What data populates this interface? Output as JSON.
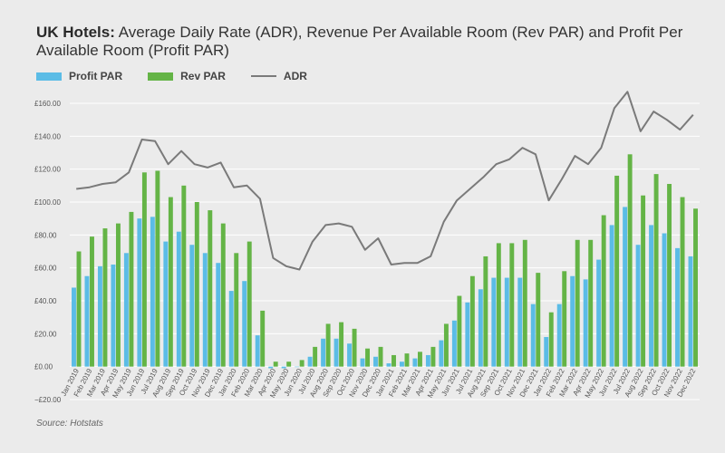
{
  "title_bold": "UK Hotels:",
  "title_rest": " Average Daily Rate (ADR), Revenue Per Available Room (Rev PAR) and Profit Per Available Room (Profit PAR)",
  "source": "Source: Hotstats",
  "colors": {
    "profit": "#5bbce6",
    "rev": "#64b446",
    "adr": "#7a7a7a",
    "grid": "#ffffff"
  },
  "legend": [
    {
      "label": "Profit PAR",
      "kind": "bar",
      "color": "#5bbce6"
    },
    {
      "label": "Rev PAR",
      "kind": "bar",
      "color": "#64b446"
    },
    {
      "label": "ADR",
      "kind": "line",
      "color": "#7a7a7a"
    }
  ],
  "chart_data": {
    "type": "bar",
    "title": "UK Hotels: Average Daily Rate (ADR), Revenue Per Available Room (Rev PAR) and Profit Per Available Room (Profit PAR)",
    "ylim": [
      -20,
      160
    ],
    "yticks": [
      -20,
      0,
      20,
      40,
      60,
      80,
      100,
      120,
      140,
      160
    ],
    "ytick_labels": [
      "−£20.00",
      "£0.00",
      "£20.00",
      "£40.00",
      "£60.00",
      "£80.00",
      "£100.00",
      "£120.00",
      "£140.00",
      "£160.00"
    ],
    "grid": true,
    "legend_position": "top-left",
    "categories": [
      "Jan 2019",
      "Feb 2019",
      "Mar 2019",
      "Apr 2019",
      "May 2019",
      "Jun 2019",
      "Jul 2019",
      "Aug 2019",
      "Sep 2019",
      "Oct 2019",
      "Nov 2019",
      "Dec 2019",
      "Jan 2020",
      "Feb 2020",
      "Mar 2020",
      "Apr 2020",
      "May 2020",
      "Jun 2020",
      "Jul 2020",
      "Aug 2020",
      "Sep 2020",
      "Oct 2020",
      "Nov 2020",
      "Dec 2020",
      "Jan 2021",
      "Feb 2021",
      "Mar 2021",
      "Apr 2021",
      "May 2021",
      "Jun 2021",
      "Jul 2021",
      "Aug 2021",
      "Sep 2021",
      "Oct 2021",
      "Nov 2021",
      "Dec 2021",
      "Jan 2022",
      "Feb 2022",
      "Mar 2022",
      "Apr 2022",
      "May 2022",
      "Jun 2022",
      "Jul 2022",
      "Aug 2022",
      "Sep 2022",
      "Oct 2022",
      "Nov 2022",
      "Dec 2022"
    ],
    "series": [
      {
        "name": "Profit PAR",
        "type": "bar",
        "values": [
          48,
          55,
          61,
          62,
          69,
          90,
          91,
          76,
          82,
          74,
          69,
          63,
          46,
          52,
          19,
          -1,
          -1,
          0,
          6,
          17,
          17,
          14,
          5,
          6,
          2,
          3,
          5,
          7,
          16,
          28,
          39,
          47,
          54,
          54,
          54,
          38,
          18,
          38,
          55,
          53,
          65,
          86,
          97,
          74,
          86,
          81,
          72,
          67
        ]
      },
      {
        "name": "Rev PAR",
        "type": "bar",
        "values": [
          70,
          79,
          84,
          87,
          94,
          118,
          119,
          103,
          110,
          100,
          95,
          87,
          69,
          76,
          34,
          3,
          3,
          4,
          12,
          26,
          27,
          23,
          11,
          12,
          7,
          8,
          9,
          12,
          26,
          43,
          55,
          67,
          75,
          75,
          77,
          57,
          33,
          58,
          77,
          77,
          92,
          116,
          129,
          104,
          117,
          111,
          103,
          96
        ]
      },
      {
        "name": "ADR",
        "type": "line",
        "values": [
          108,
          109,
          111,
          112,
          118,
          138,
          137,
          123,
          131,
          123,
          121,
          124,
          109,
          110,
          102,
          66,
          61,
          59,
          76,
          86,
          87,
          85,
          71,
          78,
          62,
          63,
          63,
          67,
          88,
          101,
          108,
          115,
          123,
          126,
          133,
          129,
          101,
          114,
          128,
          123,
          133,
          157,
          167,
          143,
          155,
          150,
          144,
          153
        ]
      }
    ]
  }
}
